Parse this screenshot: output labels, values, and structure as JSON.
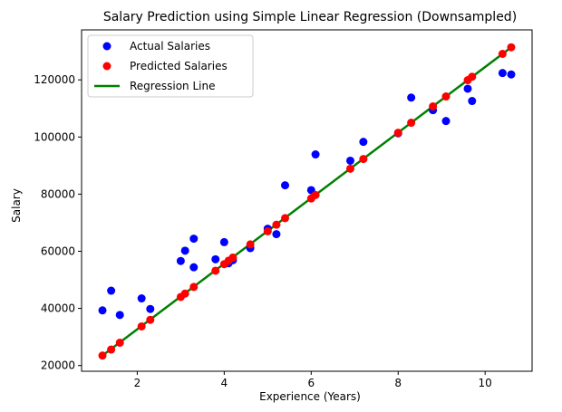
{
  "chart_data": {
    "type": "scatter",
    "title": "Salary Prediction using Simple Linear Regression (Downsampled)",
    "xlabel": "Experience (Years)",
    "ylabel": "Salary",
    "xlim": [
      0.72,
      11.08
    ],
    "ylim": [
      18000,
      137500
    ],
    "x_ticks": [
      2,
      4,
      6,
      8,
      10
    ],
    "y_ticks": [
      20000,
      40000,
      60000,
      80000,
      100000,
      120000
    ],
    "grid": false,
    "legend_position": "upper-left",
    "series": [
      {
        "name": "Actual Salaries",
        "kind": "scatter",
        "color": "#0000ff",
        "points": [
          [
            1.2,
            39300
          ],
          [
            1.4,
            46200
          ],
          [
            1.6,
            37700
          ],
          [
            2.1,
            43500
          ],
          [
            2.3,
            39800
          ],
          [
            3.0,
            56600
          ],
          [
            3.1,
            60200
          ],
          [
            3.3,
            54400
          ],
          [
            3.3,
            64400
          ],
          [
            3.8,
            57200
          ],
          [
            4.0,
            63200
          ],
          [
            4.1,
            55800
          ],
          [
            4.2,
            56900
          ],
          [
            4.6,
            61100
          ],
          [
            5.0,
            67900
          ],
          [
            5.2,
            66000
          ],
          [
            5.4,
            83100
          ],
          [
            6.0,
            81400
          ],
          [
            6.1,
            93900
          ],
          [
            6.9,
            91700
          ],
          [
            7.2,
            98300
          ],
          [
            8.0,
            101300
          ],
          [
            8.3,
            113800
          ],
          [
            8.8,
            109400
          ],
          [
            9.1,
            105600
          ],
          [
            9.6,
            116900
          ],
          [
            9.7,
            112600
          ],
          [
            10.4,
            122400
          ],
          [
            10.6,
            121900
          ]
        ]
      },
      {
        "name": "Predicted Salaries",
        "kind": "scatter",
        "color": "#ff0000",
        "points": [
          [
            1.2,
            23500
          ],
          [
            1.4,
            25600
          ],
          [
            1.6,
            28000
          ],
          [
            2.1,
            33700
          ],
          [
            2.3,
            36000
          ],
          [
            3.0,
            44000
          ],
          [
            3.1,
            45200
          ],
          [
            3.3,
            47500
          ],
          [
            3.8,
            53200
          ],
          [
            4.0,
            55500
          ],
          [
            4.1,
            56700
          ],
          [
            4.2,
            57800
          ],
          [
            4.6,
            62400
          ],
          [
            5.0,
            67000
          ],
          [
            5.2,
            69300
          ],
          [
            5.4,
            71600
          ],
          [
            6.0,
            78500
          ],
          [
            6.1,
            79700
          ],
          [
            6.9,
            88900
          ],
          [
            7.2,
            92300
          ],
          [
            8.0,
            101500
          ],
          [
            8.3,
            105000
          ],
          [
            8.8,
            110700
          ],
          [
            9.1,
            114200
          ],
          [
            9.6,
            119900
          ],
          [
            9.7,
            121100
          ],
          [
            10.4,
            129100
          ],
          [
            10.6,
            131400
          ]
        ]
      },
      {
        "name": "Regression Line",
        "kind": "line",
        "color": "#008000",
        "points": [
          [
            1.2,
            23500
          ],
          [
            10.6,
            131400
          ]
        ]
      }
    ]
  }
}
